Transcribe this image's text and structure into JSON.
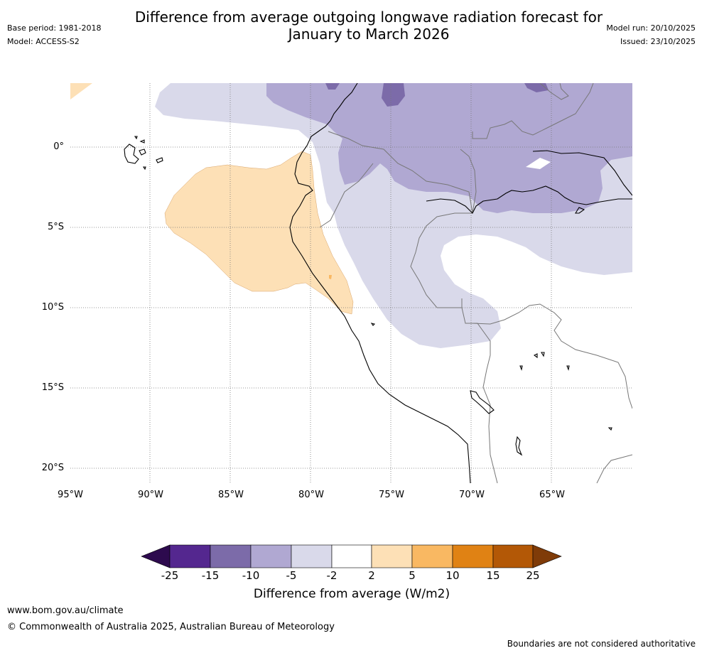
{
  "header": {
    "title_line1": "Difference from average outgoing longwave radiation forecast for",
    "title_line2": "January to March 2026",
    "base_period": "Base period: 1981-2018",
    "model": "Model: ACCESS-S2",
    "model_run": "Model run: 20/10/2025",
    "issued": "Issued: 23/10/2025"
  },
  "axes": {
    "lat_labels": [
      "0°",
      "5°S",
      "10°S",
      "15°S",
      "20°S"
    ],
    "lon_labels": [
      "95°W",
      "90°W",
      "85°W",
      "80°W",
      "75°W",
      "70°W",
      "65°W"
    ]
  },
  "colorbar": {
    "labels": [
      "-25",
      "-15",
      "-10",
      "-5",
      "-2",
      "2",
      "5",
      "10",
      "15",
      "25"
    ],
    "colors": [
      "#2d0a4e",
      "#54278f",
      "#7c6ba9",
      "#b0a8d2",
      "#d9d9ea",
      "#ffffff",
      "#fde0b6",
      "#f9b862",
      "#e08214",
      "#b35806",
      "#7f3b08"
    ],
    "title": "Difference from average (W/m2)"
  },
  "footer": {
    "url": "www.bom.gov.au/climate",
    "copyright": "© Commonwealth of Australia 2025, Australian Bureau of Meteorology",
    "note": "Boundaries are not considered authoritative"
  }
}
